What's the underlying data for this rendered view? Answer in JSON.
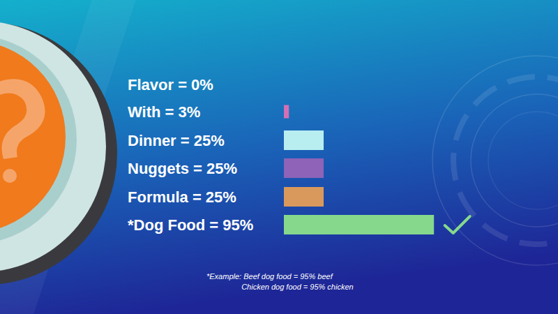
{
  "chart_data": {
    "type": "bar",
    "orientation": "horizontal",
    "categories": [
      "Flavor = 0%",
      "With = 3%",
      "Dinner = 25%",
      "Nuggets = 25%",
      "Formula = 25%",
      "*Dog Food = 95%"
    ],
    "values": [
      0,
      3,
      25,
      25,
      25,
      95
    ],
    "colors": [
      "#7fd08a",
      "#d470b4",
      "#b8eef0",
      "#8e63b8",
      "#d9995c",
      "#86d98c"
    ],
    "xlim": [
      0,
      100
    ],
    "tick_labels": false,
    "grid": false,
    "annotations": [
      "*Example: Beef dog food = 95% beef",
      "Chicken dog food = 95% chicken"
    ]
  }
}
